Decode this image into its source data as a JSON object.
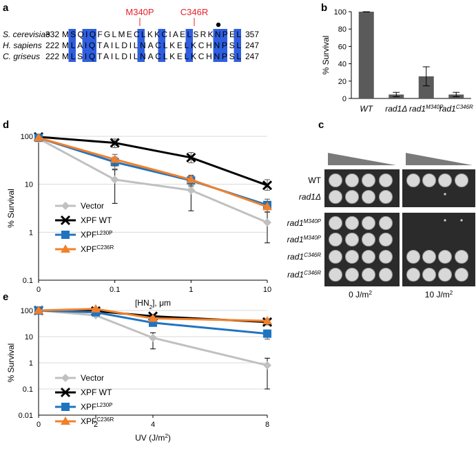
{
  "panel_labels": {
    "a": "a",
    "b": "b",
    "c": "c",
    "d": "d",
    "e": "e"
  },
  "alignment": {
    "mutation_labels": [
      "M340P",
      "C346R"
    ],
    "rows": [
      {
        "species": "S. cerevisiae",
        "start": "332",
        "seq": "MSQIQFGLMECLKKCIAELSRKNPEL",
        "end": "357"
      },
      {
        "species": "H. sapiens",
        "start": "222",
        "seq": "MLAIQTAILDILNACLKELKCHNPSL",
        "end": "247"
      },
      {
        "species": "C. griseus",
        "start": "222",
        "seq": "MLSIQTAILDILNACLKELKCHNPSL",
        "end": "247"
      }
    ],
    "highlight_columns": [
      1,
      3,
      4,
      11,
      14,
      18,
      22,
      23,
      25
    ]
  },
  "colors": {
    "highlight": "#2f5fe0",
    "mutation": "#e8202a",
    "vector": "#c0c0c0",
    "wt": "#000000",
    "l230p": "#1f74c0",
    "c236r": "#f2802a",
    "bar": "#5a5a5a"
  },
  "plate": {
    "row_labels": [
      {
        "base": "WT",
        "sup": ""
      },
      {
        "base": "rad1",
        "sup": "",
        "delta": "Δ"
      },
      {
        "base": "rad1",
        "sup": "M340P"
      },
      {
        "base": "rad1",
        "sup": "M340P"
      },
      {
        "base": "rad1",
        "sup": "C346R"
      },
      {
        "base": "rad1",
        "sup": "C346R"
      }
    ],
    "dose_labels": [
      "0 J/m",
      "10 J/m"
    ],
    "dose_sup": "2"
  },
  "chart_data": [
    {
      "panel": "b",
      "type": "bar",
      "title": "",
      "ylabel": "% Survival",
      "ylim": [
        0,
        100
      ],
      "yticks": [
        "0",
        "20",
        "40",
        "60",
        "80",
        "100"
      ],
      "categories": [
        {
          "base": "WT",
          "sup": ""
        },
        {
          "base": "rad1",
          "sup": "",
          "delta": "Δ"
        },
        {
          "base": "rad1",
          "sup": "M340P"
        },
        {
          "base": "rad1",
          "sup": "C346R"
        }
      ],
      "values": [
        100,
        4.5,
        25.5,
        4.5
      ],
      "errors": [
        0.3,
        2.5,
        11,
        2.5
      ]
    },
    {
      "panel": "d",
      "type": "line",
      "yscale": "log",
      "ylim": [
        0.1,
        100
      ],
      "yticks": [
        "0.1",
        "1",
        "10",
        "100"
      ],
      "x_categories": [
        "0",
        "0.1",
        "1",
        "10"
      ],
      "xlabel": {
        "pre": "[HN",
        "sub": "2",
        "post": "], μm"
      },
      "ylabel": "% Survival",
      "series": [
        {
          "name": "Vector",
          "sup": "",
          "marker": "diamond",
          "values": [
            90,
            12.5,
            7.5,
            1.6
          ],
          "err_low": [
            0,
            8.5,
            4.7,
            1.0
          ],
          "err_high": [
            0,
            7.5,
            5.0,
            1.4
          ]
        },
        {
          "name": "XPF WT",
          "sup": "",
          "marker": "x",
          "values": [
            97,
            73,
            36,
            9.5
          ],
          "err_low": [
            0,
            15,
            8,
            2.0
          ],
          "err_high": [
            0,
            15,
            10,
            3.0
          ]
        },
        {
          "name": "XPF",
          "sup": "L230P",
          "marker": "square",
          "values": [
            93,
            29,
            12,
            3.7
          ],
          "err_low": [
            0,
            8,
            3,
            1.0
          ],
          "err_high": [
            0,
            8,
            3,
            1.2
          ]
        },
        {
          "name": "XPF",
          "sup": "C236R",
          "marker": "triangle",
          "values": [
            93,
            33,
            12.5,
            3.4
          ],
          "err_low": [
            0,
            9,
            3,
            0.8
          ],
          "err_high": [
            0,
            9,
            3,
            0.9
          ]
        }
      ]
    },
    {
      "panel": "e",
      "type": "line",
      "yscale": "log",
      "ylim": [
        0.01,
        100
      ],
      "yticks": [
        "0.01",
        "0.1",
        "1",
        "10",
        "100"
      ],
      "x": [
        0,
        2,
        4,
        8
      ],
      "xticks": [
        "0",
        "2",
        "4",
        "8"
      ],
      "xlabel": {
        "pre": "UV (J/m",
        "sup": "2",
        "post": ")"
      },
      "ylabel": "% Survival",
      "series": [
        {
          "name": "Vector",
          "sup": "",
          "marker": "diamond",
          "values": [
            100,
            65,
            9,
            0.8
          ],
          "err_low": [
            0,
            5,
            5.6,
            0.7
          ],
          "err_high": [
            0,
            5,
            5,
            0.7
          ]
        },
        {
          "name": "XPF WT",
          "sup": "",
          "marker": "x",
          "values": [
            100,
            95,
            60,
            36
          ],
          "err_low": [
            0,
            6,
            12,
            8
          ],
          "err_high": [
            0,
            6,
            12,
            8
          ]
        },
        {
          "name": "XPF",
          "sup": "L230P",
          "marker": "square",
          "values": [
            100,
            85,
            34,
            13
          ],
          "err_low": [
            0,
            6,
            9,
            5
          ],
          "err_high": [
            0,
            6,
            9,
            5
          ]
        },
        {
          "name": "XPF",
          "sup": "C236R",
          "marker": "triangle",
          "values": [
            100,
            115,
            50,
            40
          ],
          "err_low": [
            0,
            8,
            10,
            8
          ],
          "err_high": [
            0,
            8,
            10,
            8
          ]
        }
      ]
    }
  ]
}
